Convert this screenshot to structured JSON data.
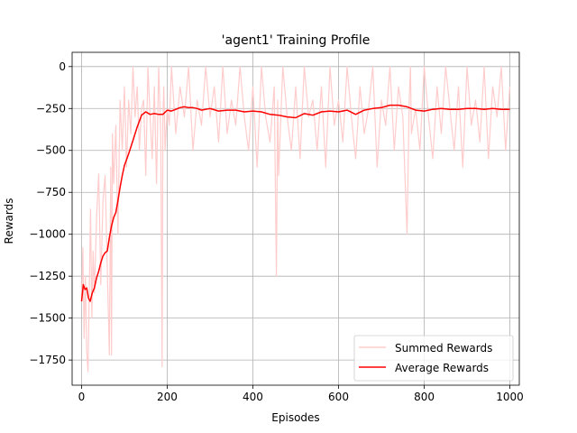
{
  "chart_data": {
    "type": "line",
    "title": "'agent1' Training Profile",
    "xlabel": "Episodes",
    "ylabel": "Rewards",
    "xlim": [
      -22,
      1022
    ],
    "ylim": [
      -1900,
      85
    ],
    "xticks": [
      0,
      200,
      400,
      600,
      800,
      1000
    ],
    "yticks": [
      0,
      -250,
      -500,
      -750,
      -1000,
      -1250,
      -1500,
      -1750
    ],
    "ytick_labels": [
      "0",
      "−250",
      "−500",
      "−750",
      "−1000",
      "−1250",
      "−1500",
      "−1750"
    ],
    "grid": true,
    "legend_position": "lower-right",
    "colors": {
      "summed": "#ffcccc",
      "average": "#ff0000"
    },
    "series": [
      {
        "name": "Summed Rewards",
        "kind": "noisy",
        "x": [
          0,
          3,
          6,
          9,
          12,
          15,
          18,
          21,
          24,
          27,
          30,
          35,
          40,
          45,
          50,
          55,
          60,
          65,
          68,
          70,
          72,
          75,
          80,
          85,
          90,
          95,
          100,
          105,
          110,
          115,
          120,
          125,
          130,
          135,
          140,
          145,
          150,
          155,
          160,
          165,
          170,
          175,
          180,
          185,
          188,
          190,
          192,
          195,
          200,
          205,
          210,
          220,
          230,
          240,
          250,
          260,
          270,
          280,
          290,
          300,
          310,
          320,
          330,
          340,
          350,
          360,
          370,
          380,
          390,
          400,
          410,
          420,
          430,
          440,
          450,
          455,
          458,
          460,
          470,
          480,
          490,
          500,
          510,
          520,
          530,
          540,
          550,
          560,
          570,
          580,
          590,
          600,
          610,
          620,
          630,
          640,
          650,
          660,
          670,
          680,
          690,
          700,
          710,
          720,
          730,
          740,
          750,
          760,
          765,
          768,
          770,
          780,
          790,
          800,
          810,
          820,
          830,
          840,
          850,
          860,
          870,
          880,
          890,
          900,
          910,
          920,
          930,
          940,
          950,
          960,
          970,
          980,
          990,
          1000
        ],
        "y": [
          -1400,
          -1080,
          -1620,
          -1250,
          -1700,
          -1820,
          -1350,
          -850,
          -1500,
          -1100,
          -1350,
          -900,
          -640,
          -1300,
          -800,
          -650,
          -1200,
          -1720,
          -600,
          -1720,
          -400,
          -700,
          -350,
          -1000,
          -200,
          -500,
          -120,
          -600,
          -200,
          -400,
          0,
          -300,
          -120,
          -500,
          -250,
          -200,
          -650,
          0,
          -300,
          -550,
          -120,
          -700,
          0,
          -400,
          -1790,
          -300,
          -120,
          -500,
          -250,
          -350,
          0,
          -400,
          -120,
          -300,
          0,
          -500,
          -200,
          -350,
          0,
          -300,
          -120,
          -450,
          0,
          -400,
          -200,
          -350,
          0,
          -300,
          -500,
          -120,
          -600,
          0,
          -300,
          -450,
          -120,
          -1250,
          -200,
          -650,
          0,
          -300,
          -500,
          -120,
          -550,
          0,
          -300,
          -200,
          -500,
          -120,
          -600,
          0,
          -350,
          -200,
          -450,
          0,
          -300,
          -550,
          -120,
          -400,
          -250,
          0,
          -600,
          -200,
          -350,
          0,
          -500,
          -120,
          -300,
          -1000,
          -200,
          0,
          -400,
          -250,
          -500,
          0,
          -300,
          -550,
          -120,
          -400,
          0,
          -250,
          -500,
          -120,
          -600,
          0,
          -350,
          -200,
          -450,
          0,
          -550,
          -120,
          -300,
          0,
          -500,
          -120
        ]
      },
      {
        "name": "Average Rewards",
        "kind": "smooth",
        "x": [
          0,
          4,
          8,
          12,
          16,
          20,
          25,
          30,
          35,
          40,
          45,
          50,
          55,
          60,
          65,
          70,
          75,
          80,
          85,
          90,
          95,
          100,
          110,
          120,
          130,
          140,
          150,
          160,
          170,
          180,
          190,
          200,
          210,
          220,
          230,
          240,
          250,
          260,
          270,
          280,
          290,
          300,
          320,
          340,
          360,
          380,
          400,
          420,
          440,
          460,
          480,
          500,
          520,
          540,
          560,
          580,
          600,
          620,
          640,
          660,
          680,
          700,
          720,
          740,
          760,
          780,
          800,
          820,
          840,
          860,
          880,
          900,
          920,
          940,
          960,
          980,
          1000
        ],
        "y": [
          -1400,
          -1300,
          -1330,
          -1320,
          -1380,
          -1400,
          -1350,
          -1320,
          -1260,
          -1220,
          -1170,
          -1130,
          -1110,
          -1100,
          -1020,
          -950,
          -900,
          -870,
          -800,
          -720,
          -650,
          -590,
          -520,
          -440,
          -360,
          -290,
          -270,
          -285,
          -280,
          -285,
          -285,
          -260,
          -265,
          -255,
          -245,
          -240,
          -245,
          -245,
          -250,
          -260,
          -255,
          -250,
          -265,
          -260,
          -260,
          -270,
          -265,
          -270,
          -285,
          -290,
          -300,
          -305,
          -280,
          -290,
          -270,
          -265,
          -270,
          -260,
          -285,
          -260,
          -250,
          -245,
          -230,
          -230,
          -240,
          -260,
          -265,
          -255,
          -250,
          -255,
          -255,
          -250,
          -250,
          -255,
          -250,
          -255,
          -255
        ]
      }
    ]
  }
}
